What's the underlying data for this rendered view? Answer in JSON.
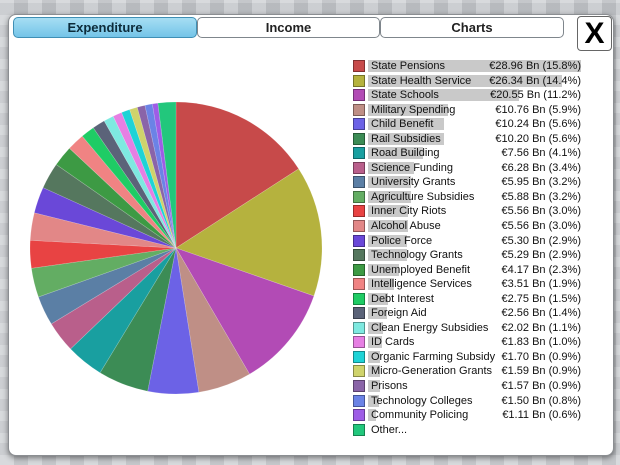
{
  "tabs": [
    {
      "label": "Expenditure",
      "active": true
    },
    {
      "label": "Income",
      "active": false
    },
    {
      "label": "Charts",
      "active": false
    }
  ],
  "close_label": "X",
  "chart_data": {
    "type": "pie",
    "title": "",
    "series": [
      {
        "values": [
          {
            "label": "State Pensions",
            "value": 28.96,
            "percent": 15.8,
            "display": "€28.96 Bn (15.8%)",
            "color": "#c74a4a"
          },
          {
            "label": "State Health Service",
            "value": 26.34,
            "percent": 14.4,
            "display": "€26.34 Bn (14.4%)",
            "color": "#b5b23e"
          },
          {
            "label": "State Schools",
            "value": 20.55,
            "percent": 11.2,
            "display": "€20.55 Bn (11.2%)",
            "color": "#b24bb5"
          },
          {
            "label": "Military Spending",
            "value": 10.76,
            "percent": 5.9,
            "display": "€10.76 Bn (5.9%)",
            "color": "#bf8f86"
          },
          {
            "label": "Child Benefit",
            "value": 10.24,
            "percent": 5.6,
            "display": "€10.24 Bn (5.6%)",
            "color": "#6c62e6"
          },
          {
            "label": "Rail Subsidies",
            "value": 10.2,
            "percent": 5.6,
            "display": "€10.20 Bn (5.6%)",
            "color": "#3c8c55"
          },
          {
            "label": "Road Building",
            "value": 7.56,
            "percent": 4.1,
            "display": "€7.56 Bn (4.1%)",
            "color": "#199fa0"
          },
          {
            "label": "Science Funding",
            "value": 6.28,
            "percent": 3.4,
            "display": "€6.28 Bn (3.4%)",
            "color": "#b95f8b"
          },
          {
            "label": "University Grants",
            "value": 5.95,
            "percent": 3.2,
            "display": "€5.95 Bn (3.2%)",
            "color": "#5b7fa5"
          },
          {
            "label": "Agriculture Subsidies",
            "value": 5.88,
            "percent": 3.2,
            "display": "€5.88 Bn (3.2%)",
            "color": "#63ad63"
          },
          {
            "label": "Inner City Riots",
            "value": 5.56,
            "percent": 3.0,
            "display": "€5.56 Bn (3.0%)",
            "color": "#e84343"
          },
          {
            "label": "Alcohol Abuse",
            "value": 5.56,
            "percent": 3.0,
            "display": "€5.56 Bn (3.0%)",
            "color": "#e28787"
          },
          {
            "label": "Police Force",
            "value": 5.3,
            "percent": 2.9,
            "display": "€5.30 Bn (2.9%)",
            "color": "#6a48d8"
          },
          {
            "label": "Technology Grants",
            "value": 5.29,
            "percent": 2.9,
            "display": "€5.29 Bn (2.9%)",
            "color": "#55775e"
          },
          {
            "label": "Unemployed Benefit",
            "value": 4.17,
            "percent": 2.3,
            "display": "€4.17 Bn (2.3%)",
            "color": "#3d9a44"
          },
          {
            "label": "Intelligence Services",
            "value": 3.51,
            "percent": 1.9,
            "display": "€3.51 Bn (1.9%)",
            "color": "#f08383"
          },
          {
            "label": "Debt Interest",
            "value": 2.75,
            "percent": 1.5,
            "display": "€2.75 Bn (1.5%)",
            "color": "#1fcc65"
          },
          {
            "label": "Foreign Aid",
            "value": 2.56,
            "percent": 1.4,
            "display": "€2.56 Bn (1.4%)",
            "color": "#5b6379"
          },
          {
            "label": "Clean Energy Subsidies",
            "value": 2.02,
            "percent": 1.1,
            "display": "€2.02 Bn (1.1%)",
            "color": "#7ee9e0"
          },
          {
            "label": "ID Cards",
            "value": 1.83,
            "percent": 1.0,
            "display": "€1.83 Bn (1.0%)",
            "color": "#e67fe3"
          },
          {
            "label": "Organic Farming Subsidy",
            "value": 1.7,
            "percent": 0.9,
            "display": "€1.70 Bn (0.9%)",
            "color": "#1ed3d6"
          },
          {
            "label": "Micro-Generation Grants",
            "value": 1.59,
            "percent": 0.9,
            "display": "€1.59 Bn (0.9%)",
            "color": "#cfd36b"
          },
          {
            "label": "Prisons",
            "value": 1.57,
            "percent": 0.9,
            "display": "€1.57 Bn (0.9%)",
            "color": "#8a64a8"
          },
          {
            "label": "Technology Colleges",
            "value": 1.5,
            "percent": 0.8,
            "display": "€1.50 Bn (0.8%)",
            "color": "#6b83e6"
          },
          {
            "label": "Community Policing",
            "value": 1.11,
            "percent": 0.6,
            "display": "€1.11 Bn (0.6%)",
            "color": "#9e5de6"
          },
          {
            "label": "Other...",
            "value": 3.61,
            "percent": 2.0,
            "display": "",
            "color": "#22c77c"
          }
        ]
      }
    ]
  }
}
